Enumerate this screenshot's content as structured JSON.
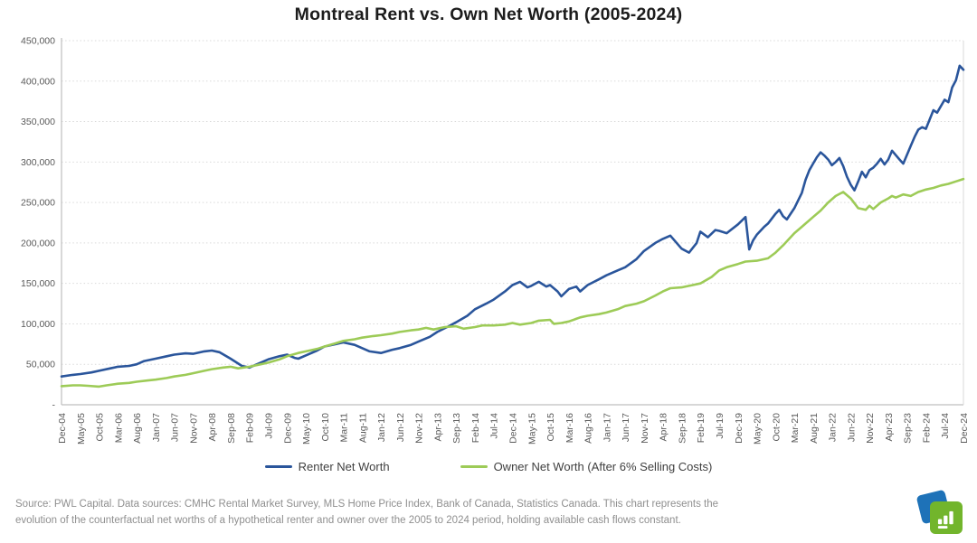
{
  "chart_data": {
    "type": "line",
    "title": "Montreal Rent vs. Own Net Worth (2005-2024)",
    "xlabel": "",
    "ylabel": "",
    "ylim": [
      0,
      450000
    ],
    "y_ticks": [
      "450,000",
      "400,000",
      "350,000",
      "300,000",
      "250,000",
      "200,000",
      "150,000",
      "100,000",
      "50,000",
      "-"
    ],
    "grid": "horizontal-dotted",
    "legend_position": "bottom",
    "x_months_span": 240,
    "x_tick_interval_months": 5,
    "x_tick_labels": [
      "Dec-04",
      "May-05",
      "Oct-05",
      "Mar-06",
      "Aug-06",
      "Jan-07",
      "Jun-07",
      "Nov-07",
      "Apr-08",
      "Sep-08",
      "Feb-09",
      "Jul-09",
      "Dec-09",
      "May-10",
      "Oct-10",
      "Mar-11",
      "Aug-11",
      "Jan-12",
      "Jun-12",
      "Nov-12",
      "Apr-13",
      "Sep-13",
      "Feb-14",
      "Jul-14",
      "Dec-14",
      "May-15",
      "Oct-15",
      "Mar-16",
      "Aug-16",
      "Jan-17",
      "Jun-17",
      "Nov-17",
      "Apr-18",
      "Sep-18",
      "Feb-19",
      "Jul-19",
      "Dec-19",
      "May-20",
      "Oct-20",
      "Mar-21",
      "Aug-21",
      "Jan-22",
      "Jun-22",
      "Nov-22",
      "Apr-23",
      "Sep-23",
      "Feb-24",
      "Jul-24",
      "Dec-24"
    ],
    "colors": {
      "grid": "#D9D9D9",
      "axis": "#BFBFBF",
      "tick_text": "#595959"
    },
    "series": [
      {
        "name": "Renter Net Worth",
        "color": "#2A559B",
        "points": [
          [
            0,
            35000
          ],
          [
            3,
            37000
          ],
          [
            5,
            38000
          ],
          [
            8,
            40000
          ],
          [
            10,
            42000
          ],
          [
            13,
            45000
          ],
          [
            15,
            47000
          ],
          [
            18,
            48000
          ],
          [
            20,
            50000
          ],
          [
            22,
            54000
          ],
          [
            25,
            57000
          ],
          [
            28,
            60000
          ],
          [
            30,
            62000
          ],
          [
            33,
            63500
          ],
          [
            35,
            63000
          ],
          [
            38,
            66000
          ],
          [
            40,
            67000
          ],
          [
            42,
            65000
          ],
          [
            45,
            57000
          ],
          [
            48,
            48000
          ],
          [
            50,
            46000
          ],
          [
            52,
            50000
          ],
          [
            55,
            56000
          ],
          [
            58,
            60000
          ],
          [
            60,
            62000
          ],
          [
            62,
            58000
          ],
          [
            63,
            57000
          ],
          [
            65,
            61000
          ],
          [
            68,
            67000
          ],
          [
            70,
            72000
          ],
          [
            73,
            75000
          ],
          [
            75,
            77000
          ],
          [
            78,
            74000
          ],
          [
            80,
            70000
          ],
          [
            82,
            66000
          ],
          [
            85,
            64000
          ],
          [
            88,
            68000
          ],
          [
            90,
            70000
          ],
          [
            93,
            74000
          ],
          [
            95,
            78000
          ],
          [
            98,
            84000
          ],
          [
            100,
            90000
          ],
          [
            103,
            97000
          ],
          [
            105,
            102000
          ],
          [
            108,
            110000
          ],
          [
            110,
            118000
          ],
          [
            113,
            125000
          ],
          [
            115,
            130000
          ],
          [
            118,
            140000
          ],
          [
            120,
            148000
          ],
          [
            122,
            152000
          ],
          [
            124,
            145000
          ],
          [
            125,
            147000
          ],
          [
            127,
            152000
          ],
          [
            129,
            146000
          ],
          [
            130,
            148000
          ],
          [
            132,
            140000
          ],
          [
            133,
            134000
          ],
          [
            135,
            143000
          ],
          [
            137,
            146000
          ],
          [
            138,
            140000
          ],
          [
            140,
            148000
          ],
          [
            143,
            155000
          ],
          [
            145,
            160000
          ],
          [
            148,
            166000
          ],
          [
            150,
            170000
          ],
          [
            153,
            180000
          ],
          [
            155,
            190000
          ],
          [
            158,
            200000
          ],
          [
            160,
            205000
          ],
          [
            162,
            209000
          ],
          [
            165,
            193000
          ],
          [
            167,
            188000
          ],
          [
            169,
            200000
          ],
          [
            170,
            214000
          ],
          [
            172,
            207000
          ],
          [
            174,
            216000
          ],
          [
            175,
            215000
          ],
          [
            177,
            212000
          ],
          [
            180,
            223000
          ],
          [
            182,
            232000
          ],
          [
            183,
            192000
          ],
          [
            184,
            203000
          ],
          [
            185,
            210000
          ],
          [
            187,
            220000
          ],
          [
            188,
            224000
          ],
          [
            190,
            236000
          ],
          [
            191,
            241000
          ],
          [
            192,
            233000
          ],
          [
            193,
            229000
          ],
          [
            195,
            243000
          ],
          [
            197,
            262000
          ],
          [
            198,
            278000
          ],
          [
            199,
            290000
          ],
          [
            200,
            298000
          ],
          [
            201,
            306000
          ],
          [
            202,
            312000
          ],
          [
            203,
            308000
          ],
          [
            204,
            303000
          ],
          [
            205,
            296000
          ],
          [
            206,
            300000
          ],
          [
            207,
            305000
          ],
          [
            208,
            295000
          ],
          [
            209,
            282000
          ],
          [
            210,
            272000
          ],
          [
            211,
            265000
          ],
          [
            212,
            276000
          ],
          [
            213,
            288000
          ],
          [
            214,
            281000
          ],
          [
            215,
            290000
          ],
          [
            216,
            293000
          ],
          [
            217,
            298000
          ],
          [
            218,
            304000
          ],
          [
            219,
            297000
          ],
          [
            220,
            303000
          ],
          [
            221,
            314000
          ],
          [
            223,
            303000
          ],
          [
            224,
            298000
          ],
          [
            226,
            320000
          ],
          [
            227,
            331000
          ],
          [
            228,
            340000
          ],
          [
            229,
            343000
          ],
          [
            230,
            341000
          ],
          [
            232,
            364000
          ],
          [
            233,
            361000
          ],
          [
            235,
            377000
          ],
          [
            236,
            374000
          ],
          [
            237,
            392000
          ],
          [
            238,
            401000
          ],
          [
            239,
            419000
          ],
          [
            240,
            414000
          ]
        ]
      },
      {
        "name": "Owner Net Worth (After 6% Selling Costs)",
        "color": "#9DCB57",
        "points": [
          [
            0,
            23000
          ],
          [
            3,
            24000
          ],
          [
            5,
            24000
          ],
          [
            7,
            23500
          ],
          [
            10,
            22500
          ],
          [
            12,
            24000
          ],
          [
            15,
            26000
          ],
          [
            18,
            27000
          ],
          [
            20,
            28500
          ],
          [
            23,
            30000
          ],
          [
            25,
            31000
          ],
          [
            28,
            33000
          ],
          [
            30,
            35000
          ],
          [
            33,
            37000
          ],
          [
            35,
            39000
          ],
          [
            38,
            42000
          ],
          [
            40,
            44000
          ],
          [
            43,
            46000
          ],
          [
            45,
            47000
          ],
          [
            47,
            45000
          ],
          [
            50,
            47000
          ],
          [
            53,
            50000
          ],
          [
            55,
            52000
          ],
          [
            58,
            56000
          ],
          [
            60,
            60000
          ],
          [
            63,
            64000
          ],
          [
            65,
            66000
          ],
          [
            68,
            69000
          ],
          [
            70,
            72000
          ],
          [
            73,
            76000
          ],
          [
            75,
            79000
          ],
          [
            78,
            81000
          ],
          [
            80,
            83000
          ],
          [
            83,
            85000
          ],
          [
            85,
            86000
          ],
          [
            88,
            88000
          ],
          [
            90,
            90000
          ],
          [
            93,
            92000
          ],
          [
            95,
            93000
          ],
          [
            97,
            95000
          ],
          [
            99,
            93000
          ],
          [
            100,
            94000
          ],
          [
            102,
            96000
          ],
          [
            105,
            97000
          ],
          [
            107,
            94000
          ],
          [
            110,
            96000
          ],
          [
            112,
            98000
          ],
          [
            115,
            98000
          ],
          [
            118,
            99000
          ],
          [
            120,
            101000
          ],
          [
            122,
            99000
          ],
          [
            125,
            101000
          ],
          [
            127,
            104000
          ],
          [
            130,
            105000
          ],
          [
            131,
            100000
          ],
          [
            133,
            101000
          ],
          [
            135,
            103000
          ],
          [
            138,
            108000
          ],
          [
            140,
            110000
          ],
          [
            143,
            112000
          ],
          [
            145,
            114000
          ],
          [
            148,
            118000
          ],
          [
            150,
            122000
          ],
          [
            153,
            125000
          ],
          [
            155,
            128000
          ],
          [
            158,
            135000
          ],
          [
            160,
            140000
          ],
          [
            162,
            144000
          ],
          [
            165,
            145000
          ],
          [
            168,
            148000
          ],
          [
            170,
            150000
          ],
          [
            173,
            158000
          ],
          [
            175,
            166000
          ],
          [
            177,
            170000
          ],
          [
            180,
            174000
          ],
          [
            182,
            177000
          ],
          [
            185,
            178000
          ],
          [
            188,
            181000
          ],
          [
            190,
            188000
          ],
          [
            192,
            197000
          ],
          [
            195,
            212000
          ],
          [
            197,
            220000
          ],
          [
            200,
            232000
          ],
          [
            202,
            240000
          ],
          [
            204,
            250000
          ],
          [
            206,
            258000
          ],
          [
            208,
            263000
          ],
          [
            210,
            255000
          ],
          [
            212,
            243000
          ],
          [
            214,
            241000
          ],
          [
            215,
            246000
          ],
          [
            216,
            242000
          ],
          [
            218,
            250000
          ],
          [
            220,
            255000
          ],
          [
            221,
            258000
          ],
          [
            222,
            256000
          ],
          [
            224,
            260000
          ],
          [
            226,
            258000
          ],
          [
            228,
            263000
          ],
          [
            230,
            266000
          ],
          [
            232,
            268000
          ],
          [
            234,
            271000
          ],
          [
            236,
            273000
          ],
          [
            238,
            276000
          ],
          [
            240,
            279000
          ]
        ]
      }
    ]
  },
  "legend": {
    "items": [
      {
        "label": "Renter Net Worth"
      },
      {
        "label": "Owner Net Worth (After 6% Selling Costs)"
      }
    ]
  },
  "footer": {
    "line1": "Source: PWL Capital. Data sources: CMHC Rental Market Survey, MLS Home Price Index, Bank of Canada, Statistics Canada. This chart represents the",
    "line2": "evolution of the counterfactual net worths of a hypothetical renter and owner over the 2005 to 2024 period, holding available cash flows constant."
  },
  "logo": {
    "name": "PWL Capital logo",
    "green": "#72B52C",
    "blue": "#1E72B8"
  }
}
